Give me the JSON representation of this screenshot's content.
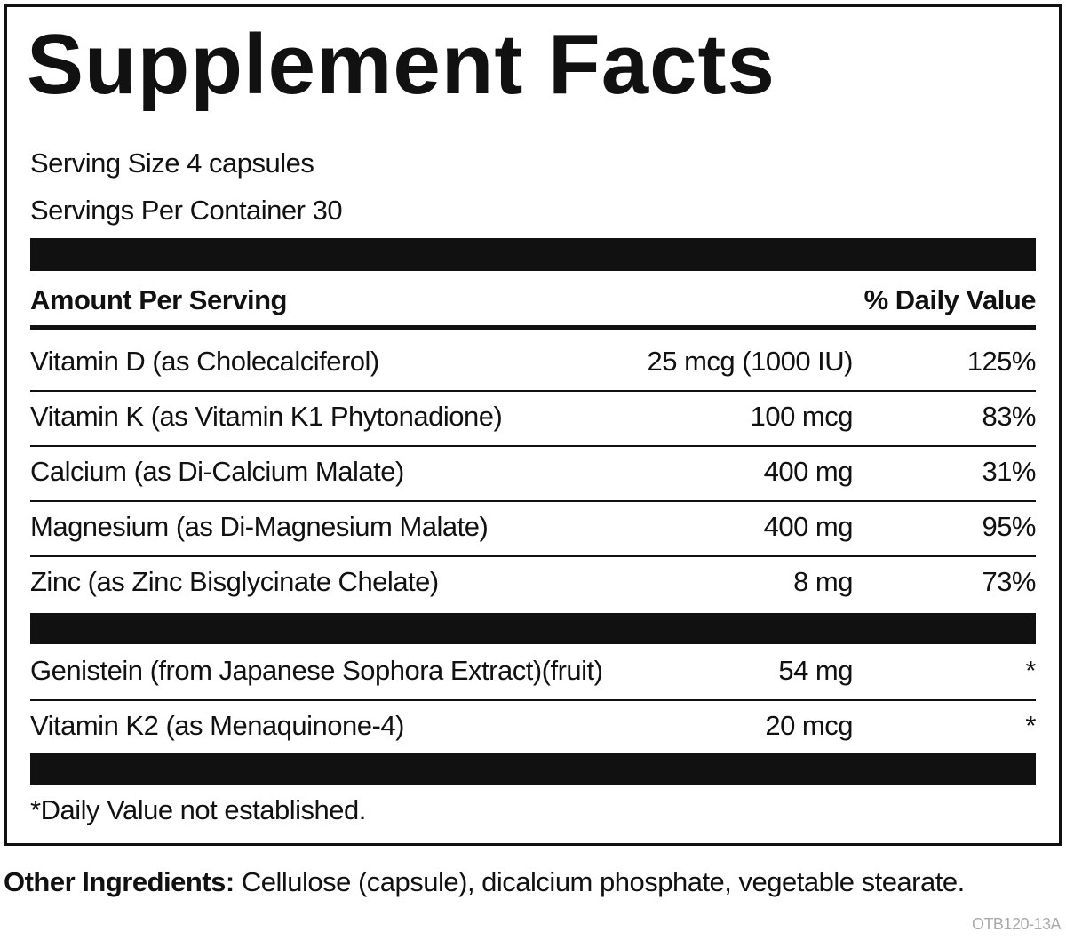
{
  "header": {
    "title": "Supplement Facts",
    "serving_size": "Serving Size 4 capsules",
    "servings_per_container": "Servings Per Container 30"
  },
  "table": {
    "header": [
      "Amount Per Serving",
      "% Daily Value"
    ],
    "rows": [
      [
        "Vitamin D (as Cholecalciferol)",
        "25 mcg (1000 IU)",
        "125%"
      ],
      [
        "Vitamin K (as Vitamin K1 Phytonadione)",
        "100 mcg",
        "83%"
      ],
      [
        "Calcium (as Di-Calcium Malate)",
        "400 mg",
        "31%"
      ],
      [
        "Magnesium (as Di-Magnesium Malate)",
        "400 mg",
        "95%"
      ],
      [
        "Zinc (as Zinc Bisglycinate Chelate)",
        "8 mg",
        "73%"
      ]
    ],
    "rows_2": [
      [
        "Genistein (from Japanese Sophora Extract)(fruit)",
        "54 mg",
        "*"
      ],
      [
        "Vitamin K2 (as Menaquinone-4)",
        "20 mcg",
        "*"
      ]
    ]
  },
  "footnote": "*Daily Value not established.",
  "other_ingredients": {
    "label": "Other Ingredients:",
    "text": "Cellulose (capsule), dicalcium phosphate, vegetable stearate."
  },
  "code": "OTB120-13A"
}
